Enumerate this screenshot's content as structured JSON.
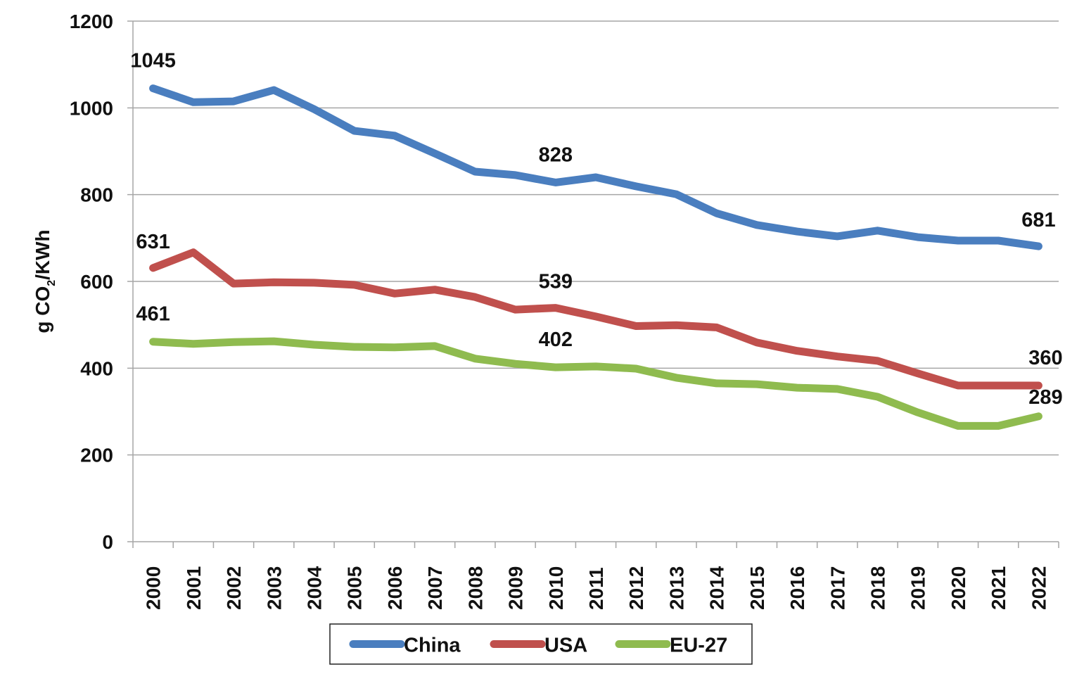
{
  "chart_data": {
    "type": "line",
    "title": "",
    "xlabel": "",
    "ylabel": "g CO2/KWh",
    "ylabel_parts": {
      "prefix": "g CO",
      "subscript": "2",
      "suffix": "/KWh"
    },
    "ylim": [
      0,
      1200
    ],
    "yticks": [
      0,
      200,
      400,
      600,
      800,
      1000,
      1200
    ],
    "grid": true,
    "legend_position": "bottom",
    "categories": [
      "2000",
      "2001",
      "2002",
      "2003",
      "2004",
      "2005",
      "2006",
      "2007",
      "2008",
      "2009",
      "2010",
      "2011",
      "2012",
      "2013",
      "2014",
      "2015",
      "2016",
      "2017",
      "2018",
      "2019",
      "2020",
      "2021",
      "2022"
    ],
    "series": [
      {
        "name": "China",
        "color": "#4a7ebf",
        "values": [
          1045,
          1013,
          1015,
          1041,
          997,
          947,
          936,
          895,
          853,
          845,
          828,
          840,
          819,
          801,
          757,
          730,
          715,
          704,
          717,
          702,
          694,
          694,
          681
        ]
      },
      {
        "name": "USA",
        "color": "#c0504d",
        "values": [
          631,
          667,
          595,
          598,
          597,
          592,
          572,
          581,
          564,
          535,
          539,
          519,
          497,
          499,
          494,
          459,
          440,
          427,
          417,
          388,
          360,
          360,
          360
        ]
      },
      {
        "name": "EU-27",
        "color": "#8fbb4f",
        "values": [
          461,
          456,
          460,
          462,
          454,
          449,
          448,
          451,
          422,
          410,
          402,
          404,
          399,
          378,
          365,
          363,
          355,
          352,
          334,
          298,
          267,
          267,
          289
        ]
      }
    ],
    "annotations": [
      {
        "series": "China",
        "x": "2000",
        "text": "1045"
      },
      {
        "series": "China",
        "x": "2010",
        "text": "828"
      },
      {
        "series": "China",
        "x": "2022",
        "text": "681"
      },
      {
        "series": "USA",
        "x": "2000",
        "text": "631"
      },
      {
        "series": "USA",
        "x": "2010",
        "text": "539"
      },
      {
        "series": "USA",
        "x": "2022",
        "text": "360"
      },
      {
        "series": "EU-27",
        "x": "2000",
        "text": "461"
      },
      {
        "series": "EU-27",
        "x": "2010",
        "text": "402"
      },
      {
        "series": "EU-27",
        "x": "2022",
        "text": "289"
      }
    ]
  }
}
